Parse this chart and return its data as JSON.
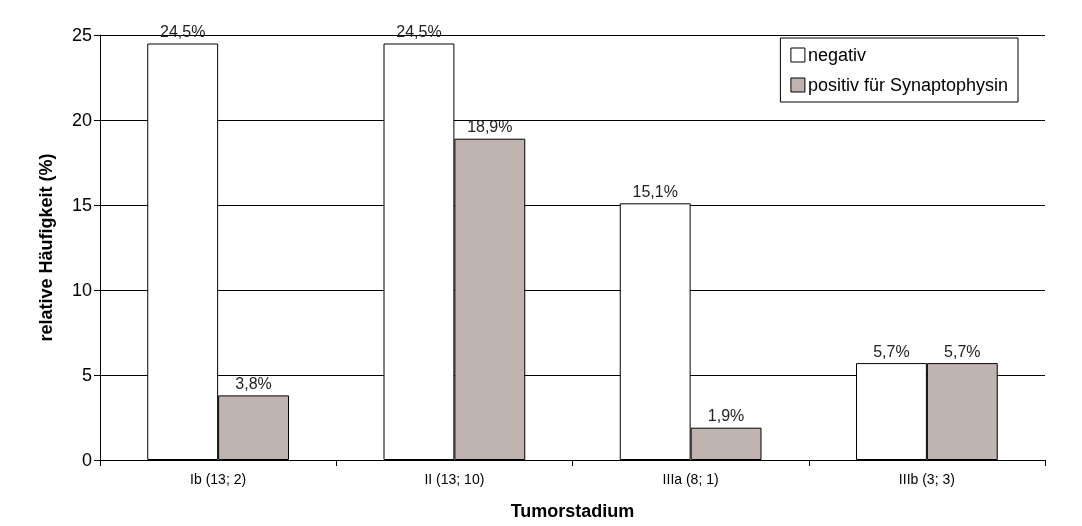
{
  "chart_data": {
    "type": "bar",
    "xlabel": "Tumorstadium",
    "ylabel": "relative Häufigkeit (%)",
    "categories": [
      "Ib (13; 2)",
      "II (13; 10)",
      "IIIa (8; 1)",
      "IIIb (3; 3)"
    ],
    "series": [
      {
        "name": "negativ",
        "color": "#ffffff",
        "values": [
          24.5,
          24.5,
          15.1,
          5.7
        ],
        "value_labels": [
          "24,5%",
          "24,5%",
          "15,1%",
          "5,7%"
        ]
      },
      {
        "name": "positiv für Synaptophysin",
        "color": "#c0b4b0",
        "values": [
          3.8,
          18.9,
          1.9,
          5.7
        ],
        "value_labels": [
          "3,8%",
          "18,9%",
          "1,9%",
          "5,7%"
        ]
      }
    ],
    "ylim": [
      0,
      25
    ],
    "yticks": [
      0,
      5,
      10,
      15,
      20,
      25
    ],
    "grid": "y",
    "legend": "top right"
  }
}
